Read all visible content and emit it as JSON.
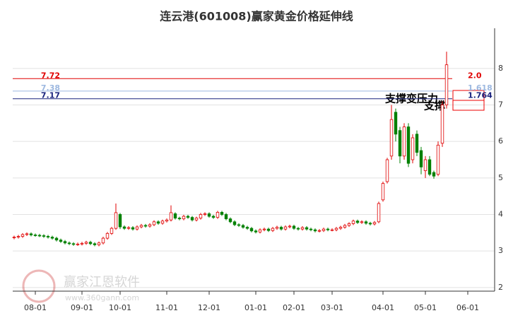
{
  "chart_data": {
    "type": "candlestick",
    "title": "连云港(601008)赢家黄金价格延伸线",
    "categories": [
      null,
      null,
      null,
      null,
      null,
      "08-01",
      null,
      null,
      null,
      null,
      null,
      null,
      null,
      null,
      null,
      null,
      "09-01",
      null,
      null,
      null,
      null,
      null,
      null,
      null,
      null,
      "10-01",
      null,
      null,
      null,
      null,
      null,
      null,
      null,
      null,
      null,
      null,
      "11-01",
      null,
      null,
      null,
      null,
      null,
      null,
      null,
      null,
      null,
      "12-01",
      null,
      null,
      null,
      null,
      null,
      null,
      null,
      null,
      null,
      null,
      "01-01",
      null,
      null,
      null,
      null,
      null,
      null,
      null,
      null,
      "02-01",
      null,
      null,
      null,
      null,
      null,
      null,
      null,
      null,
      "03-01",
      null,
      null,
      null,
      null,
      null,
      null,
      null,
      null,
      null,
      null,
      null,
      "04-01",
      null,
      null,
      null,
      null,
      null,
      null,
      null,
      null,
      null,
      "05-01",
      null,
      null,
      null,
      null,
      null,
      null,
      null,
      null,
      null,
      "06-01"
    ],
    "open": [
      3.36,
      3.38,
      3.4,
      3.45,
      3.47,
      3.44,
      3.43,
      3.42,
      3.4,
      3.38,
      3.35,
      3.3,
      3.26,
      3.22,
      3.2,
      3.18,
      3.19,
      3.21,
      3.24,
      3.2,
      3.17,
      3.22,
      3.35,
      3.48,
      3.62,
      4.0,
      3.66,
      3.62,
      3.64,
      3.6,
      3.66,
      3.7,
      3.68,
      3.72,
      3.8,
      3.76,
      3.82,
      3.85,
      4.02,
      3.9,
      3.88,
      3.95,
      3.92,
      3.85,
      3.9,
      4.0,
      4.02,
      3.95,
      3.92,
      4.06,
      4.0,
      3.88,
      3.8,
      3.72,
      3.7,
      3.65,
      3.62,
      3.55,
      3.52,
      3.58,
      3.6,
      3.56,
      3.62,
      3.65,
      3.6,
      3.66,
      3.68,
      3.62,
      3.6,
      3.64,
      3.6,
      3.58,
      3.55,
      3.56,
      3.6,
      3.58,
      3.58,
      3.62,
      3.65,
      3.7,
      3.75,
      3.82,
      3.78,
      3.8,
      3.76,
      3.74,
      3.8,
      4.4,
      4.9,
      5.6,
      6.8,
      6.3,
      5.6,
      6.4,
      5.5,
      6.2,
      5.75,
      5.2,
      5.5,
      5.15,
      5.1,
      5.95,
      7.0,
      null,
      null,
      null,
      null,
      null
    ],
    "high": [
      3.42,
      3.44,
      3.49,
      3.51,
      3.51,
      3.48,
      3.47,
      3.46,
      3.44,
      3.42,
      3.39,
      3.34,
      3.3,
      3.26,
      3.24,
      3.23,
      3.25,
      3.28,
      3.28,
      3.24,
      3.26,
      3.39,
      3.52,
      3.66,
      4.3,
      4.04,
      3.7,
      3.68,
      3.68,
      3.7,
      3.74,
      3.74,
      3.76,
      3.84,
      3.84,
      3.86,
      3.89,
      4.25,
      4.06,
      3.94,
      3.99,
      3.99,
      3.96,
      3.94,
      4.04,
      4.06,
      4.06,
      3.99,
      4.1,
      4.1,
      4.04,
      3.92,
      3.84,
      3.76,
      3.74,
      3.69,
      3.66,
      3.59,
      3.62,
      3.64,
      3.64,
      3.66,
      3.69,
      3.69,
      3.7,
      3.72,
      3.72,
      3.66,
      3.68,
      3.68,
      3.64,
      3.62,
      3.6,
      3.64,
      3.64,
      3.62,
      3.66,
      3.69,
      3.74,
      3.79,
      3.86,
      3.86,
      3.84,
      3.84,
      3.8,
      3.82,
      4.35,
      4.9,
      5.55,
      7.0,
      6.9,
      6.4,
      6.5,
      6.5,
      6.2,
      6.3,
      5.85,
      5.6,
      5.6,
      5.2,
      6.0,
      7.1,
      8.46,
      null,
      null,
      null,
      null,
      null
    ],
    "low": [
      3.32,
      3.34,
      3.36,
      3.41,
      3.4,
      3.39,
      3.38,
      3.36,
      3.34,
      3.31,
      3.26,
      3.22,
      3.18,
      3.16,
      3.14,
      3.14,
      3.15,
      3.17,
      3.16,
      3.13,
      3.13,
      3.18,
      3.31,
      3.44,
      3.58,
      3.6,
      3.58,
      3.58,
      3.56,
      3.56,
      3.62,
      3.64,
      3.64,
      3.68,
      3.72,
      3.72,
      3.78,
      3.81,
      3.86,
      3.84,
      3.84,
      3.88,
      3.81,
      3.81,
      3.86,
      3.96,
      3.91,
      3.88,
      3.88,
      3.96,
      3.84,
      3.76,
      3.68,
      3.66,
      3.61,
      3.58,
      3.51,
      3.48,
      3.48,
      3.54,
      3.52,
      3.52,
      3.58,
      3.56,
      3.56,
      3.62,
      3.58,
      3.56,
      3.56,
      3.56,
      3.54,
      3.51,
      3.51,
      3.52,
      3.54,
      3.54,
      3.54,
      3.58,
      3.61,
      3.66,
      3.71,
      3.74,
      3.74,
      3.72,
      3.7,
      3.7,
      3.76,
      4.35,
      4.85,
      5.5,
      6.0,
      5.4,
      5.5,
      5.3,
      5.4,
      5.6,
      5.1,
      5.0,
      5.05,
      4.98,
      5.05,
      5.85,
      6.9,
      null,
      null,
      null,
      null,
      null
    ],
    "close": [
      3.38,
      3.4,
      3.45,
      3.47,
      3.44,
      3.43,
      3.42,
      3.4,
      3.38,
      3.35,
      3.3,
      3.26,
      3.22,
      3.2,
      3.18,
      3.19,
      3.21,
      3.24,
      3.2,
      3.17,
      3.22,
      3.35,
      3.48,
      3.62,
      4.05,
      3.66,
      3.62,
      3.64,
      3.6,
      3.66,
      3.7,
      3.68,
      3.72,
      3.8,
      3.76,
      3.82,
      3.85,
      4.05,
      3.9,
      3.88,
      3.95,
      3.92,
      3.85,
      3.9,
      4.0,
      4.02,
      3.95,
      3.92,
      4.06,
      4.0,
      3.88,
      3.8,
      3.72,
      3.7,
      3.65,
      3.62,
      3.55,
      3.52,
      3.58,
      3.6,
      3.56,
      3.62,
      3.65,
      3.6,
      3.66,
      3.68,
      3.62,
      3.6,
      3.64,
      3.6,
      3.58,
      3.55,
      3.56,
      3.6,
      3.58,
      3.58,
      3.62,
      3.65,
      3.7,
      3.75,
      3.82,
      3.78,
      3.8,
      3.76,
      3.74,
      3.78,
      4.3,
      4.85,
      5.5,
      6.6,
      6.2,
      5.6,
      6.4,
      5.4,
      6.1,
      5.7,
      5.3,
      5.5,
      5.1,
      5.05,
      5.9,
      7.0,
      8.1,
      null,
      null,
      null,
      null,
      null
    ],
    "up_color": "#e00000",
    "down_color": "#008000",
    "ylim": [
      1.9,
      9.1
    ],
    "yticks": [
      2,
      3,
      4,
      5,
      6,
      7,
      8
    ],
    "grid": true,
    "levels": [
      {
        "value": 7.72,
        "label": "7.72",
        "ratio": "2.0",
        "color": "#e00000"
      },
      {
        "value": 7.38,
        "label": "7.38",
        "ratio": "1.618",
        "color": "#9db8e0"
      },
      {
        "value": 7.17,
        "label": "7.17",
        "ratio": "1.764",
        "color": "#1a237e"
      }
    ],
    "annotations": [
      "支撑变压力",
      "支撑"
    ],
    "watermark": {
      "name": "赢家江恩软件",
      "url": "www.360gann.com"
    }
  }
}
